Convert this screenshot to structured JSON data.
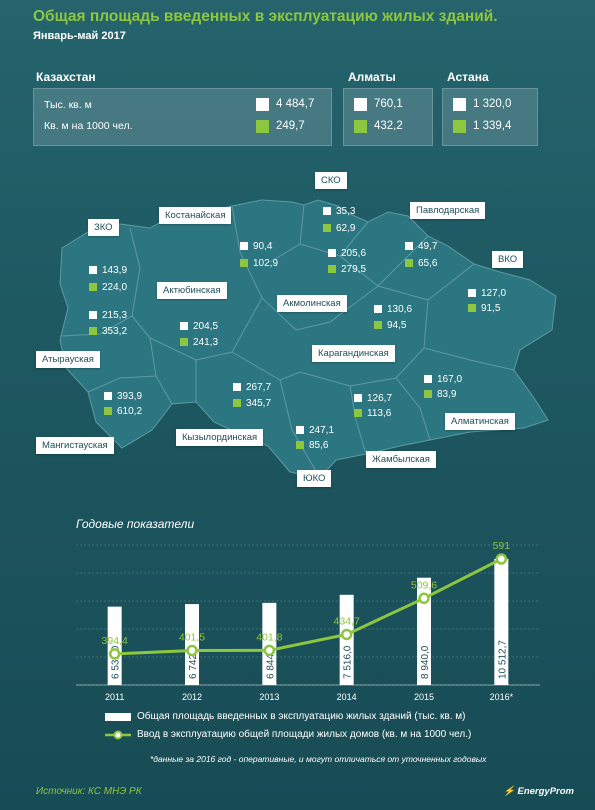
{
  "header": {
    "title": "Общая площадь введенных в эксплуатацию жилых зданий.",
    "subtitle": "Январь-май  2017"
  },
  "summary": {
    "kazakhstan": {
      "name": "Казахстан",
      "label1": "Тыс. кв. м",
      "label2": "Кв. м на 1000 чел.",
      "value1": "4 484,7",
      "value2": "249,7"
    },
    "almaty": {
      "name": "Алматы",
      "value1": "760,1",
      "value2": "432,2"
    },
    "astana": {
      "name": "Астана",
      "value1": "1 320,0",
      "value2": "1 339,4"
    }
  },
  "regions": [
    {
      "id": "zko",
      "name": "ЗКО",
      "v1": "143,9",
      "v2": "224,0"
    },
    {
      "id": "kostanay",
      "name": "Костанайская",
      "v1": "90,4",
      "v2": "102,9"
    },
    {
      "id": "sko",
      "name": "СКО",
      "v1": "35,3",
      "v2": "62,9"
    },
    {
      "id": "pavlodar",
      "name": "Павлодарская",
      "v1": "49,7",
      "v2": "65,6"
    },
    {
      "id": "vko",
      "name": "ВКО",
      "v1": "127,0",
      "v2": "91,5"
    },
    {
      "id": "akmola",
      "name": "Акмолинская",
      "v1": "205,6",
      "v2": "279,5"
    },
    {
      "id": "aktobe",
      "name": "Актюбинская",
      "v1": "204,5",
      "v2": "241,3"
    },
    {
      "id": "atyrau",
      "name": "Атырауская",
      "v1": "215,3",
      "v2": "353,2"
    },
    {
      "id": "karaganda",
      "name": "Карагандинская",
      "v1": "130,6",
      "v2": "94,5"
    },
    {
      "id": "mangystau",
      "name": "Мангистауская",
      "v1": "393,9",
      "v2": "610,2"
    },
    {
      "id": "kyzylorda",
      "name": "Кызылординская",
      "v1": "267,7",
      "v2": "345,7"
    },
    {
      "id": "almaty_obl",
      "name": "Алматинская",
      "v1": "167,0",
      "v2": "83,9"
    },
    {
      "id": "zhambyl",
      "name": "Жамбылская",
      "v1": "126,7",
      "v2": "113,6"
    },
    {
      "id": "yuko",
      "name": "ЮКО",
      "v1": "247,1",
      "v2": "85,6"
    }
  ],
  "chart_data": {
    "type": "bar",
    "title": "Годовые показатели",
    "categories": [
      "2011",
      "2012",
      "2013",
      "2014",
      "2015",
      "2016*"
    ],
    "series": [
      {
        "name": "Общая площадь введенных в эксплуатацию жилых зданий (тыс. кв. м)",
        "type": "bar",
        "values": [
          6531.0,
          6742.0,
          6844.0,
          7516.0,
          8940.0,
          10512.7
        ],
        "labels": [
          "6 531,0",
          "6 742,0",
          "6 844,0",
          "7 516,0",
          "8 940,0",
          "10 512,7"
        ]
      },
      {
        "name": "Ввод в эксплуатацию общей площади жилых домов (кв. м на 1000 чел.)",
        "type": "line",
        "values": [
          394.4,
          401.5,
          401.8,
          434.7,
          509.6,
          591
        ],
        "labels": [
          "394,4",
          "401,5",
          "401,8",
          "434,7",
          "509,6",
          "591"
        ]
      }
    ],
    "grid": true
  },
  "footnote": "*данные за 2016 год - оперативные, и могут отличаться от уточненных годовых",
  "source": "Источник: КС МНЭ РК",
  "brand": "EnergyProm",
  "colors": {
    "accent": "#8dc63f",
    "background": "#1f5a63",
    "bar": "#ffffff"
  }
}
